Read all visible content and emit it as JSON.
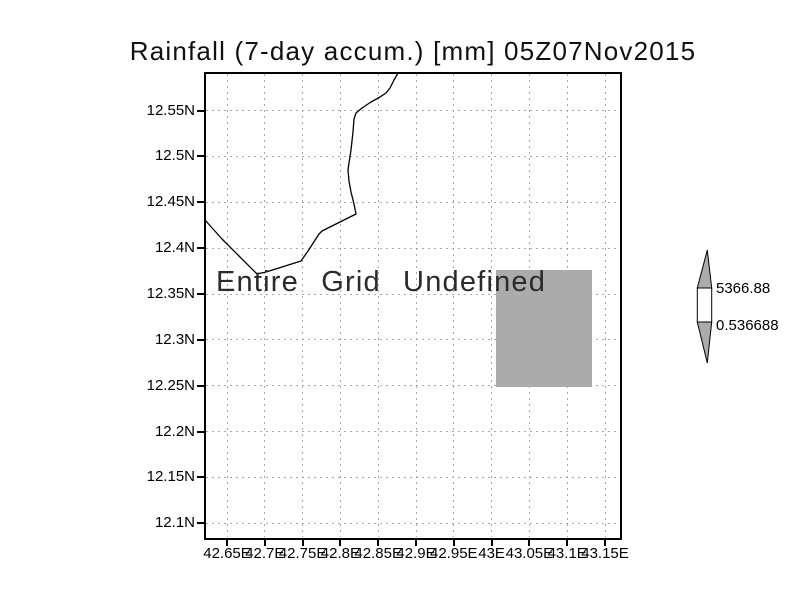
{
  "title": "Rainfall (7-day accum.) [mm] 05Z07Nov2015",
  "annotation": "Entire Grid Undefined",
  "axes": {
    "x_ticks": [
      "42.65E",
      "42.7E",
      "42.75E",
      "42.8E",
      "42.85E",
      "42.9E",
      "42.95E",
      "43E",
      "43.05E",
      "43.1E",
      "43.15E"
    ],
    "y_ticks": [
      "12.55N",
      "12.5N",
      "12.45N",
      "12.4N",
      "12.35N",
      "12.3N",
      "12.25N",
      "12.2N",
      "12.15N",
      "12.1N"
    ]
  },
  "colorbar": {
    "max_label": "5366.88",
    "min_label": "0.536688"
  },
  "colors": {
    "shade": "#ababab",
    "grid": "#a8a8a8",
    "line": "#000000"
  },
  "chart_data": {
    "type": "heatmap",
    "title": "Rainfall (7-day accum.) [mm] 05Z07Nov2015",
    "variable": "Rainfall 7-day accumulation",
    "units": "mm",
    "valid_time": "05Z07Nov2015",
    "x_tick_labels": [
      "42.65E",
      "42.7E",
      "42.75E",
      "42.8E",
      "42.85E",
      "42.9E",
      "42.95E",
      "43E",
      "43.05E",
      "43.1E",
      "43.15E"
    ],
    "y_tick_labels": [
      "12.55N",
      "12.5N",
      "12.45N",
      "12.4N",
      "12.35N",
      "12.3N",
      "12.25N",
      "12.2N",
      "12.15N",
      "12.1N"
    ],
    "xlim": [
      42.62,
      43.17
    ],
    "ylim": [
      12.08,
      12.59
    ],
    "grid": true,
    "values": "entire grid undefined (no rainfall data plotted)",
    "annotation": "Entire Grid Undefined",
    "shaded_region": {
      "lon": [
        43.005,
        43.13
      ],
      "lat": [
        12.25,
        12.375
      ],
      "color": "#ababab"
    },
    "colorbar": {
      "min": 0.536688,
      "max": 5366.88,
      "labels": [
        "5366.88",
        "0.536688"
      ],
      "position": "right"
    }
  }
}
